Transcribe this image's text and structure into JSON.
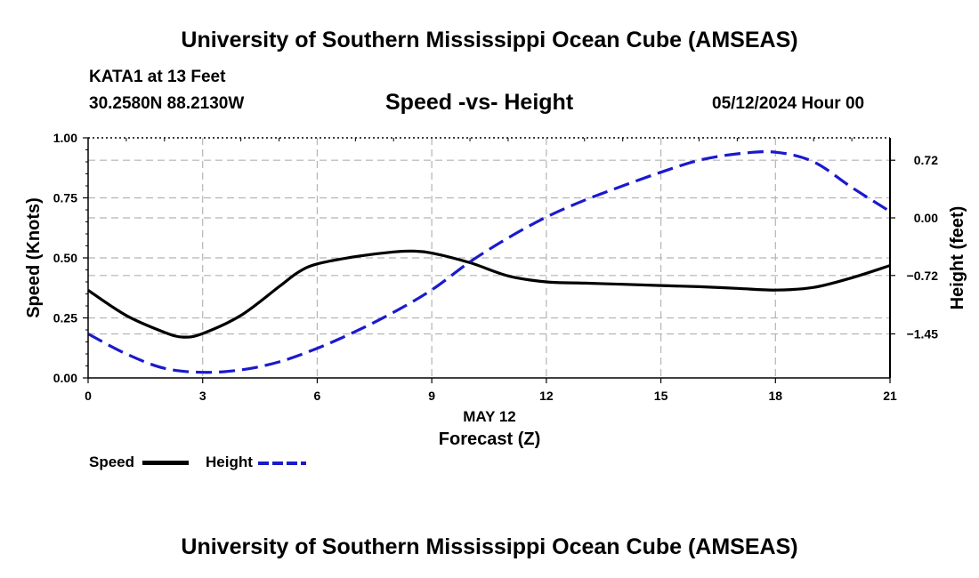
{
  "header": {
    "title_top": "University of Southern Mississippi Ocean Cube (AMSEAS)",
    "station": "KATA1 at 13 Feet",
    "coords": "30.2580N  88.2130W",
    "subtitle": "Speed -vs- Height",
    "date": "05/12/2024 Hour 00",
    "title_bottom": "University of Southern Mississippi Ocean Cube (AMSEAS)"
  },
  "legend": {
    "speed_label": "Speed",
    "height_label": "Height",
    "speed_color": "#000000",
    "height_color": "#1a1acc"
  },
  "chart_data": {
    "type": "line",
    "title": "Speed -vs- Height",
    "xlabel": "Forecast (Z)",
    "x_date_label": "MAY 12",
    "ylabel": "Speed (Knots)",
    "y2label": "Height (feet)",
    "xlim": [
      0,
      21
    ],
    "ylim": [
      0,
      1
    ],
    "y2lim": [
      -2.0,
      1.0
    ],
    "x_ticks": [
      0,
      3,
      6,
      9,
      12,
      15,
      18,
      21
    ],
    "x_tick_labels": [
      "0",
      "3",
      "6",
      "9",
      "12",
      "15",
      "18",
      "21"
    ],
    "y_ticks": [
      0,
      0.25,
      0.5,
      0.75,
      1.0
    ],
    "y_tick_labels": [
      "0.00",
      "0.25",
      "0.50",
      "0.75",
      "1.00"
    ],
    "y2_ticks": [
      -1.45,
      -0.72,
      0.0,
      0.72
    ],
    "y2_tick_labels": [
      "−1.45",
      "−0.72",
      "0.00",
      "0.72"
    ],
    "grid": true,
    "series": [
      {
        "name": "Speed",
        "axis": "left",
        "color": "#000000",
        "dash": "solid",
        "x": [
          0,
          1,
          2,
          2.5,
          3,
          4,
          5,
          5.5,
          6,
          7,
          8,
          8.5,
          9,
          10,
          11,
          12,
          13,
          14,
          15,
          16,
          17,
          18,
          19,
          20,
          21
        ],
        "values": [
          0.365,
          0.26,
          0.19,
          0.17,
          0.185,
          0.26,
          0.38,
          0.44,
          0.475,
          0.505,
          0.525,
          0.528,
          0.52,
          0.48,
          0.425,
          0.4,
          0.395,
          0.39,
          0.385,
          0.38,
          0.373,
          0.366,
          0.377,
          0.417,
          0.468
        ]
      },
      {
        "name": "Height",
        "axis": "right",
        "color": "#1a1acc",
        "dash": "dashed",
        "x": [
          0,
          1,
          2,
          3,
          4,
          5,
          6,
          7,
          8,
          9,
          10,
          11,
          12,
          13,
          14,
          15,
          16,
          17,
          18,
          19,
          20,
          21
        ],
        "values": [
          -1.45,
          -1.7,
          -1.88,
          -1.93,
          -1.9,
          -1.8,
          -1.63,
          -1.42,
          -1.18,
          -0.9,
          -0.55,
          -0.25,
          0.01,
          0.22,
          0.4,
          0.57,
          0.72,
          0.8,
          0.82,
          0.7,
          0.38,
          0.08
        ]
      }
    ]
  }
}
